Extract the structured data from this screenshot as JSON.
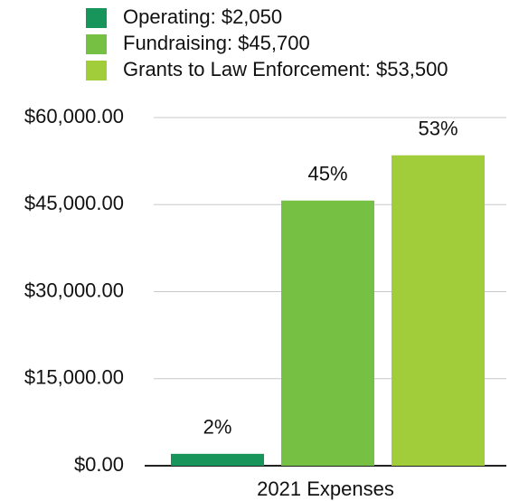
{
  "chart_data": {
    "type": "bar",
    "categories": [
      "2021 Expenses"
    ],
    "series": [
      {
        "name": "Operating:  $2,050",
        "color": "#17955a",
        "values": [
          2050
        ],
        "value_labels": [
          "2%"
        ]
      },
      {
        "name": "Fundraising:  $45,700",
        "color": "#76c043",
        "values": [
          45700
        ],
        "value_labels": [
          "45%"
        ]
      },
      {
        "name": "Grants to Law Enforcement:  $53,500",
        "color": "#a2cd3b",
        "values": [
          53500
        ],
        "value_labels": [
          "53%"
        ]
      }
    ],
    "ylim": [
      0,
      60000
    ],
    "yticks": [
      {
        "value": 0,
        "label": "$0.00"
      },
      {
        "value": 15000,
        "label": "$15,000.00"
      },
      {
        "value": 30000,
        "label": "$30,000.00"
      },
      {
        "value": 45000,
        "label": "$45,000.00"
      },
      {
        "value": 60000,
        "label": "$60,000.00"
      }
    ],
    "grid": true,
    "legend": "top"
  }
}
